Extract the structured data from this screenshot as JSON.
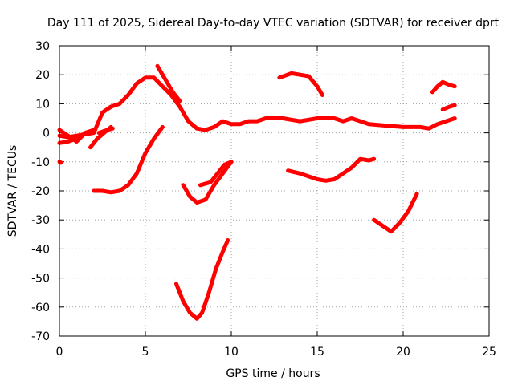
{
  "chart_data": {
    "type": "scatter",
    "title": "Day 111 of 2025, Sidereal Day-to-day VTEC variation (SDTVAR) for receiver dprt",
    "xlabel": "GPS time / hours",
    "ylabel": "SDTVAR / TECUs",
    "xlim": [
      0,
      25
    ],
    "ylim": [
      -70,
      30
    ],
    "xticks": [
      0,
      5,
      10,
      15,
      20,
      25
    ],
    "yticks": [
      -70,
      -60,
      -50,
      -40,
      -30,
      -20,
      -10,
      0,
      10,
      20,
      30
    ],
    "grid": true,
    "color": "#ff0000",
    "segments": [
      {
        "name": "main-track",
        "points": [
          [
            0,
            -1
          ],
          [
            0.5,
            -1.5
          ],
          [
            1,
            -1
          ],
          [
            1.5,
            -0.5
          ],
          [
            2,
            0
          ],
          [
            2.5,
            7
          ],
          [
            3,
            9
          ],
          [
            3.5,
            10
          ],
          [
            4,
            13
          ],
          [
            4.5,
            17
          ],
          [
            5,
            19
          ],
          [
            5.5,
            19
          ],
          [
            6,
            16
          ],
          [
            6.5,
            13
          ],
          [
            7,
            9
          ],
          [
            7.5,
            4
          ],
          [
            8,
            1.5
          ],
          [
            8.5,
            1
          ],
          [
            9,
            2
          ],
          [
            9.5,
            4
          ],
          [
            10,
            3
          ],
          [
            10.5,
            3
          ],
          [
            11,
            4
          ],
          [
            11.5,
            4
          ],
          [
            12,
            5
          ],
          [
            13,
            5
          ],
          [
            14,
            4
          ],
          [
            15,
            5
          ],
          [
            16,
            5
          ],
          [
            16.5,
            4
          ],
          [
            17,
            5
          ],
          [
            17.5,
            4
          ],
          [
            18,
            3
          ],
          [
            19,
            2.5
          ],
          [
            20,
            2
          ],
          [
            21,
            2
          ],
          [
            21.5,
            1.5
          ],
          [
            22,
            3
          ],
          [
            22.5,
            4
          ],
          [
            23,
            5
          ]
        ]
      },
      {
        "name": "early-dip",
        "points": [
          [
            0,
            1
          ],
          [
            0.5,
            -1
          ],
          [
            1,
            -3
          ],
          [
            1.5,
            0
          ],
          [
            2,
            1
          ]
        ]
      },
      {
        "name": "early-flat",
        "points": [
          [
            0,
            -3.5
          ],
          [
            0.5,
            -3
          ],
          [
            1,
            -2
          ]
        ]
      },
      {
        "name": "early-point",
        "points": [
          [
            0,
            -10
          ],
          [
            0.1,
            -10.3
          ]
        ]
      },
      {
        "name": "mid-rise",
        "points": [
          [
            1.8,
            -5
          ],
          [
            2.2,
            -2
          ],
          [
            2.6,
            0
          ],
          [
            3,
            2
          ]
        ]
      },
      {
        "name": "early-stub",
        "points": [
          [
            2.3,
            0
          ],
          [
            2.8,
            1
          ],
          [
            3.1,
            1.5
          ]
        ]
      },
      {
        "name": "steep-decline",
        "points": [
          [
            5.7,
            23
          ],
          [
            6.2,
            18
          ],
          [
            6.6,
            14
          ],
          [
            7,
            11
          ]
        ]
      },
      {
        "name": "curve-a",
        "points": [
          [
            2,
            -20
          ],
          [
            2.5,
            -20
          ],
          [
            3,
            -20.5
          ],
          [
            3.5,
            -20
          ],
          [
            4,
            -18
          ],
          [
            4.5,
            -14
          ],
          [
            5,
            -7
          ],
          [
            5.5,
            -2
          ],
          [
            6,
            2
          ]
        ]
      },
      {
        "name": "curve-b",
        "points": [
          [
            7.2,
            -18
          ],
          [
            7.6,
            -22
          ],
          [
            8,
            -24
          ],
          [
            8.5,
            -23
          ],
          [
            9,
            -18
          ],
          [
            9.5,
            -14
          ],
          [
            10,
            -10
          ]
        ]
      },
      {
        "name": "curve-c",
        "points": [
          [
            8.2,
            -18
          ],
          [
            8.8,
            -17
          ],
          [
            9.2,
            -14
          ],
          [
            9.6,
            -11
          ],
          [
            10,
            -10
          ]
        ]
      },
      {
        "name": "deep-v",
        "points": [
          [
            6.8,
            -52
          ],
          [
            7.2,
            -58
          ],
          [
            7.6,
            -62
          ],
          [
            8,
            -64
          ],
          [
            8.3,
            -62
          ],
          [
            8.7,
            -55
          ],
          [
            9.1,
            -47
          ],
          [
            9.5,
            -41
          ],
          [
            9.8,
            -37
          ]
        ]
      },
      {
        "name": "arc-top",
        "points": [
          [
            12.8,
            19
          ],
          [
            13.5,
            20.5
          ],
          [
            14,
            20
          ],
          [
            14.5,
            19.5
          ],
          [
            15,
            16
          ],
          [
            15.3,
            13
          ]
        ]
      },
      {
        "name": "bowl",
        "points": [
          [
            13.3,
            -13
          ],
          [
            14,
            -14
          ],
          [
            14.5,
            -15
          ],
          [
            15,
            -16
          ],
          [
            15.5,
            -16.5
          ],
          [
            16,
            -16
          ],
          [
            16.5,
            -14
          ],
          [
            17,
            -12
          ],
          [
            17.5,
            -9
          ],
          [
            18,
            -9.5
          ],
          [
            18.3,
            -9
          ]
        ]
      },
      {
        "name": "late-v",
        "points": [
          [
            18.3,
            -30
          ],
          [
            18.8,
            -32
          ],
          [
            19.3,
            -34
          ],
          [
            19.8,
            -31
          ],
          [
            20.3,
            -27
          ],
          [
            20.8,
            -21
          ]
        ]
      },
      {
        "name": "late-arc",
        "points": [
          [
            21.7,
            14
          ],
          [
            22,
            16
          ],
          [
            22.3,
            17.5
          ],
          [
            22.7,
            16.5
          ],
          [
            23,
            16
          ]
        ]
      },
      {
        "name": "late-stub",
        "points": [
          [
            22.3,
            8
          ],
          [
            22.7,
            9
          ],
          [
            23,
            9.5
          ]
        ]
      }
    ]
  }
}
